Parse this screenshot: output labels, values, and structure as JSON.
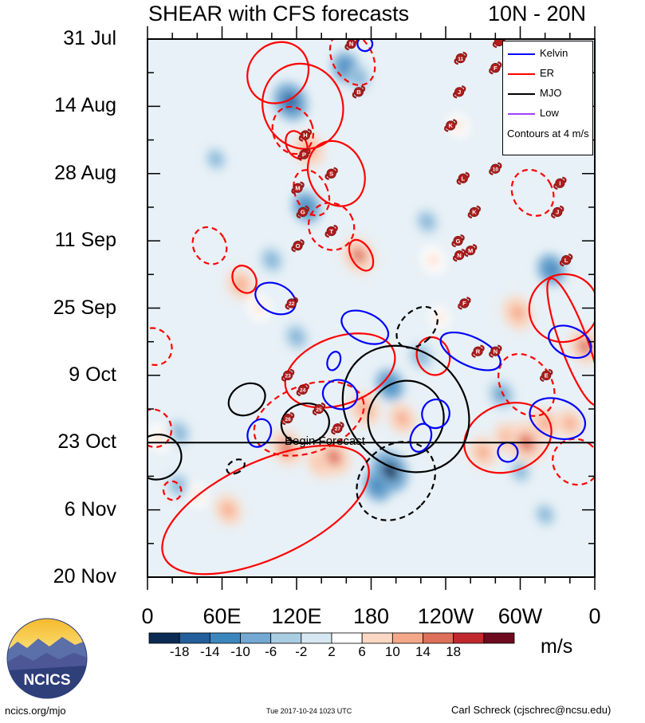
{
  "title": {
    "left": "SHEAR with CFS forecasts",
    "right": "10N - 20N"
  },
  "chart_data": {
    "type": "heatmap",
    "title": "SHEAR with CFS forecasts",
    "subtitle": "10N - 20N",
    "x_ticks": [
      "0",
      "60E",
      "120E",
      "180",
      "120W",
      "60W",
      "0"
    ],
    "x_range": [
      0,
      360
    ],
    "y_ticks": [
      "31 Jul",
      "14 Aug",
      "28 Aug",
      "11 Sep",
      "25 Sep",
      "9 Oct",
      "23 Oct",
      "6 Nov",
      "20 Nov"
    ],
    "y_range_days": [
      0,
      112
    ],
    "forecast_start_label": "Begin Forecast",
    "forecast_start_day": 84,
    "colorbar": {
      "units": "m/s",
      "tick_labels": [
        "-18",
        "-14",
        "-10",
        "-6",
        "-2",
        "2",
        "6",
        "10",
        "14",
        "18"
      ],
      "colors": [
        "#0b2b55",
        "#235f9c",
        "#3c86be",
        "#73a9d2",
        "#a9cde3",
        "#d8e8f2",
        "#ffffff",
        "#fbd8c3",
        "#f4a889",
        "#de6f5a",
        "#c0292e",
        "#6d0a1e"
      ]
    },
    "contour_note": "Contours at 4 m/s",
    "legend": [
      {
        "name": "Kelvin",
        "color": "#0000ff"
      },
      {
        "name": "ER",
        "color": "#ff0000"
      },
      {
        "name": "MJO",
        "color": "#000000"
      },
      {
        "name": "Low",
        "color": "#a040ff"
      }
    ],
    "storm_labels": [
      "N",
      "B",
      "H",
      "P",
      "S",
      "M",
      "G",
      "T",
      "O",
      "11",
      "F",
      "J",
      "K",
      "L",
      "10",
      "K",
      "I",
      "J",
      "G",
      "N",
      "M",
      "L",
      "F",
      "R",
      "N",
      "E",
      "22",
      "23",
      "24",
      "25",
      "26",
      "27"
    ],
    "shading_blobs": [
      {
        "lon": 130,
        "day": 23,
        "amp": 14
      },
      {
        "lon": 115,
        "day": 13,
        "amp": -16
      },
      {
        "lon": 128,
        "day": 35,
        "amp": -12
      },
      {
        "lon": 160,
        "day": 6,
        "amp": -12
      },
      {
        "lon": 170,
        "day": 8,
        "amp": -8
      },
      {
        "lon": 170,
        "day": 45,
        "amp": 15
      },
      {
        "lon": 230,
        "day": 46,
        "amp": 10
      },
      {
        "lon": 75,
        "day": 51,
        "amp": 12
      },
      {
        "lon": 90,
        "day": 56,
        "amp": 9
      },
      {
        "lon": 120,
        "day": 62,
        "amp": -8
      },
      {
        "lon": 195,
        "day": 72,
        "amp": -12
      },
      {
        "lon": 220,
        "day": 66,
        "amp": -8
      },
      {
        "lon": 175,
        "day": 77,
        "amp": 14
      },
      {
        "lon": 205,
        "day": 79,
        "amp": 12
      },
      {
        "lon": 140,
        "day": 88,
        "amp": 13
      },
      {
        "lon": 150,
        "day": 87,
        "amp": 16
      },
      {
        "lon": 112,
        "day": 85,
        "amp": 15
      },
      {
        "lon": 195,
        "day": 90,
        "amp": -18
      },
      {
        "lon": 185,
        "day": 93,
        "amp": -12
      },
      {
        "lon": 290,
        "day": 83,
        "amp": 12
      },
      {
        "lon": 305,
        "day": 84,
        "amp": 18
      },
      {
        "lon": 270,
        "day": 86,
        "amp": 12
      },
      {
        "lon": 320,
        "day": 80,
        "amp": 12
      },
      {
        "lon": 340,
        "day": 80,
        "amp": 11
      },
      {
        "lon": 352,
        "day": 64,
        "amp": 15
      },
      {
        "lon": 298,
        "day": 57,
        "amp": 14
      },
      {
        "lon": 285,
        "day": 74,
        "amp": -10
      },
      {
        "lon": 325,
        "day": 48,
        "amp": -12
      },
      {
        "lon": 25,
        "day": 82,
        "amp": -8
      },
      {
        "lon": 10,
        "day": 83,
        "amp": 10
      },
      {
        "lon": 65,
        "day": 98,
        "amp": 12
      },
      {
        "lon": 25,
        "day": 93,
        "amp": -7
      },
      {
        "lon": 40,
        "day": 95,
        "amp": 8
      },
      {
        "lon": 320,
        "day": 99,
        "amp": -6
      },
      {
        "lon": 250,
        "day": 18,
        "amp": 8
      },
      {
        "lon": 330,
        "day": 20,
        "amp": 7
      },
      {
        "lon": 55,
        "day": 25,
        "amp": -6
      },
      {
        "lon": 225,
        "day": 38,
        "amp": -7
      },
      {
        "lon": 300,
        "day": 90,
        "amp": -6
      },
      {
        "lon": 100,
        "day": 46,
        "amp": -8
      },
      {
        "lon": 235,
        "day": 58,
        "amp": 7
      }
    ],
    "contours": [
      {
        "series": "ER",
        "lon": 125,
        "day": 14,
        "rx": 32,
        "ry": 9,
        "rot": -25,
        "dashed": false
      },
      {
        "series": "ER",
        "lon": 117,
        "day": 19,
        "rx": 16,
        "ry": 5,
        "rot": -20,
        "dashed": true
      },
      {
        "series": "ER",
        "lon": 152,
        "day": 28,
        "rx": 22,
        "ry": 7,
        "rot": -25,
        "dashed": false
      },
      {
        "series": "ER",
        "lon": 132,
        "day": 32,
        "rx": 13,
        "ry": 5,
        "rot": -25,
        "dashed": true
      },
      {
        "series": "ER",
        "lon": 165,
        "day": 4,
        "rx": 16,
        "ry": 6,
        "rot": -30,
        "dashed": true
      },
      {
        "series": "ER",
        "lon": 105,
        "day": 7,
        "rx": 26,
        "ry": 6,
        "rot": -45,
        "dashed": false
      },
      {
        "series": "ER",
        "lon": 120,
        "day": 22,
        "rx": 8,
        "ry": 3,
        "rot": -25,
        "dashed": false
      },
      {
        "series": "ER",
        "lon": 148,
        "day": 39,
        "rx": 18,
        "ry": 5,
        "rot": -30,
        "dashed": true
      },
      {
        "series": "ER",
        "lon": 172,
        "day": 45,
        "rx": 8,
        "ry": 3.5,
        "rot": -30,
        "dashed": false
      },
      {
        "series": "ER",
        "lon": 50,
        "day": 43,
        "rx": 13,
        "ry": 4,
        "rot": -30,
        "dashed": true
      },
      {
        "series": "ER",
        "lon": 78,
        "day": 50,
        "rx": 9,
        "ry": 3,
        "rot": -30,
        "dashed": false
      },
      {
        "series": "ER",
        "lon": 310,
        "day": 32,
        "rx": 16,
        "ry": 5,
        "rot": -30,
        "dashed": true
      },
      {
        "series": "ER",
        "lon": 343,
        "day": 63,
        "rx": 11,
        "ry": 14,
        "rot": -20,
        "dashed": false
      },
      {
        "series": "ER",
        "lon": 305,
        "day": 72,
        "rx": 20,
        "ry": 7,
        "rot": -35,
        "dashed": true
      },
      {
        "series": "ER",
        "lon": 155,
        "day": 69,
        "rx": 46,
        "ry": 7,
        "rot": -20,
        "dashed": false
      },
      {
        "series": "ER",
        "lon": 230,
        "day": 66,
        "rx": 13,
        "ry": 4,
        "rot": -20,
        "dashed": false
      },
      {
        "series": "ER",
        "lon": 290,
        "day": 83,
        "rx": 36,
        "ry": 7,
        "rot": -20,
        "dashed": false
      },
      {
        "series": "ER",
        "lon": 345,
        "day": 88,
        "rx": 18,
        "ry": 5,
        "rot": -55,
        "dashed": true
      },
      {
        "series": "ER",
        "lon": 5,
        "day": 64,
        "rx": 14,
        "ry": 4,
        "rot": -40,
        "dashed": true
      },
      {
        "series": "ER",
        "lon": 5,
        "day": 81,
        "rx": 14,
        "ry": 4,
        "rot": -25,
        "dashed": true
      },
      {
        "series": "ER",
        "lon": 20,
        "day": 94,
        "rx": 7,
        "ry": 2,
        "rot": -30,
        "dashed": true
      },
      {
        "series": "ER",
        "lon": 130,
        "day": 79,
        "rx": 46,
        "ry": 7,
        "rot": -20,
        "dashed": true
      },
      {
        "series": "ER",
        "lon": 95,
        "day": 98,
        "rx": 90,
        "ry": 10,
        "rot": -25,
        "dashed": false
      },
      {
        "series": "ER",
        "lon": 335,
        "day": 56,
        "rx": 28,
        "ry": 7,
        "rot": -30,
        "dashed": false
      },
      {
        "series": "MJO",
        "lon": 208,
        "day": 77,
        "rx": 55,
        "ry": 12,
        "rot": 45,
        "dashed": false
      },
      {
        "series": "MJO",
        "lon": 208,
        "day": 79,
        "rx": 30,
        "ry": 8,
        "rot": 45,
        "dashed": false
      },
      {
        "series": "MJO",
        "lon": 217,
        "day": 60,
        "rx": 13,
        "ry": 5,
        "rot": 45,
        "dashed": true
      },
      {
        "series": "MJO",
        "lon": 200,
        "day": 92,
        "rx": 28,
        "ry": 9,
        "rot": 45,
        "dashed": true
      },
      {
        "series": "MJO",
        "lon": 80,
        "day": 75,
        "rx": 12,
        "ry": 4,
        "rot": 60,
        "dashed": false
      },
      {
        "series": "MJO",
        "lon": 127,
        "day": 80,
        "rx": 16,
        "ry": 5,
        "rot": 80,
        "dashed": false
      },
      {
        "series": "MJO",
        "lon": 8,
        "day": 87,
        "rx": 18,
        "ry": 5,
        "rot": 75,
        "dashed": false
      },
      {
        "series": "MJO",
        "lon": 71,
        "day": 89,
        "rx": 5,
        "ry": 2,
        "rot": 60,
        "dashed": true
      },
      {
        "series": "Kelvin",
        "lon": 103,
        "day": 54,
        "rx": 17,
        "ry": 3,
        "rot": 25,
        "dashed": false
      },
      {
        "series": "Kelvin",
        "lon": 175,
        "day": 60,
        "rx": 20,
        "ry": 3,
        "rot": 25,
        "dashed": false
      },
      {
        "series": "Kelvin",
        "lon": 260,
        "day": 65,
        "rx": 26,
        "ry": 3,
        "rot": 25,
        "dashed": false
      },
      {
        "series": "Kelvin",
        "lon": 155,
        "day": 74,
        "rx": 14,
        "ry": 3,
        "rot": 15,
        "dashed": false
      },
      {
        "series": "Kelvin",
        "lon": 90,
        "day": 82,
        "rx": 9,
        "ry": 3,
        "rot": 25,
        "dashed": false
      },
      {
        "series": "Kelvin",
        "lon": 232,
        "day": 78,
        "rx": 11,
        "ry": 3,
        "rot": 20,
        "dashed": false
      },
      {
        "series": "Kelvin",
        "lon": 220,
        "day": 83,
        "rx": 8,
        "ry": 3,
        "rot": 20,
        "dashed": false
      },
      {
        "series": "Kelvin",
        "lon": 330,
        "day": 79,
        "rx": 23,
        "ry": 4,
        "rot": 20,
        "dashed": false
      },
      {
        "series": "Kelvin",
        "lon": 340,
        "day": 63,
        "rx": 18,
        "ry": 3,
        "rot": 25,
        "dashed": false
      },
      {
        "series": "Kelvin",
        "lon": 150,
        "day": 67,
        "rx": 5,
        "ry": 2,
        "rot": 20,
        "dashed": false
      },
      {
        "series": "Kelvin",
        "lon": 175,
        "day": 1,
        "rx": 6,
        "ry": 1.5,
        "rot": 10,
        "dashed": false
      },
      {
        "series": "Kelvin",
        "lon": 290,
        "day": 86,
        "rx": 8,
        "ry": 2,
        "rot": 15,
        "dashed": false
      }
    ],
    "storms": [
      {
        "label": "N",
        "lon": 164,
        "day": 1
      },
      {
        "label": "B",
        "lon": 170,
        "day": 11
      },
      {
        "label": "H",
        "lon": 127,
        "day": 20
      },
      {
        "label": "P",
        "lon": 126,
        "day": 24
      },
      {
        "label": "S",
        "lon": 148,
        "day": 28
      },
      {
        "label": "M",
        "lon": 121,
        "day": 31
      },
      {
        "label": "G",
        "lon": 125,
        "day": 36
      },
      {
        "label": "T",
        "lon": 148,
        "day": 40
      },
      {
        "label": "O",
        "lon": 121,
        "day": 43
      },
      {
        "label": "11",
        "lon": 252,
        "day": 4
      },
      {
        "label": "F",
        "lon": 280,
        "day": 6
      },
      {
        "label": "J",
        "lon": 251,
        "day": 11
      },
      {
        "label": "K",
        "lon": 244,
        "day": 18
      },
      {
        "label": "L",
        "lon": 254,
        "day": 29
      },
      {
        "label": "10",
        "lon": 280,
        "day": 27
      },
      {
        "label": "K",
        "lon": 263,
        "day": 36
      },
      {
        "label": "I",
        "lon": 332,
        "day": 30
      },
      {
        "label": "J",
        "lon": 330,
        "day": 36
      },
      {
        "label": "G",
        "lon": 250,
        "day": 42
      },
      {
        "label": "N",
        "lon": 251,
        "day": 45
      },
      {
        "label": "M",
        "lon": 260,
        "day": 44
      },
      {
        "label": "L",
        "lon": 337,
        "day": 46
      },
      {
        "label": "F",
        "lon": 255,
        "day": 55
      },
      {
        "label": "R",
        "lon": 266,
        "day": 65
      },
      {
        "label": "N",
        "lon": 280,
        "day": 65
      },
      {
        "label": "E",
        "lon": 321,
        "day": 70
      },
      {
        "label": "22",
        "lon": 116,
        "day": 55
      },
      {
        "label": "23",
        "lon": 113,
        "day": 70
      },
      {
        "label": "24",
        "lon": 125,
        "day": 73
      },
      {
        "label": "25",
        "lon": 138,
        "day": 77
      },
      {
        "label": "26",
        "lon": 113,
        "day": 79
      },
      {
        "label": "27",
        "lon": 153,
        "day": 81
      },
      {
        "label": "",
        "lon": 283,
        "day": 0.5
      }
    ]
  },
  "footer": {
    "left": "ncics.org/mjo",
    "middle": "Tue 2017-10-24 1023 UTC",
    "right": "Carl Schreck (cjschrec@ncsu.edu)"
  },
  "logo": {
    "text": "NCICS"
  }
}
